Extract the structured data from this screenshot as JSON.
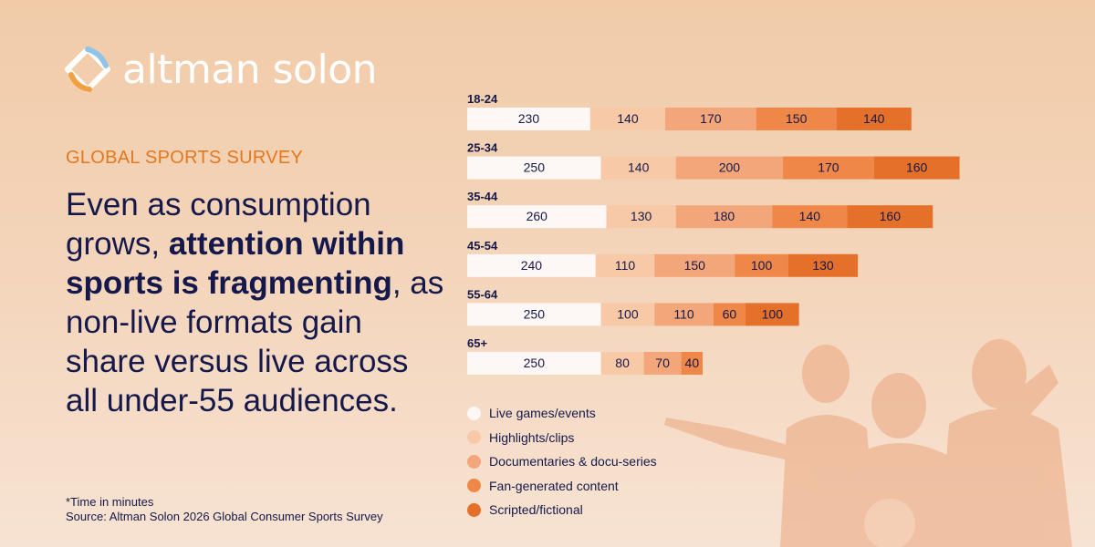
{
  "brand": {
    "name": "altman solon"
  },
  "eyebrow": "GLOBAL SPORTS SURVEY",
  "headline": {
    "part1": "Even as consumption grows, ",
    "bold": "attention within sports is fragmenting",
    "part2": ", as non-live formats gain share versus live across all under-55 audiences."
  },
  "footnote": {
    "unit_note": "*Time in minutes",
    "source": "Source: Altman Solon 2026 Global Consumer Sports Survey"
  },
  "chart_data": {
    "type": "bar",
    "orientation": "horizontal",
    "stacked": true,
    "categories": [
      "18-24",
      "25-34",
      "35-44",
      "45-54",
      "55-64",
      "65+"
    ],
    "series": [
      {
        "name": "Live games/events",
        "color": "#fdf8f5",
        "values": [
          230,
          250,
          260,
          240,
          250,
          250
        ]
      },
      {
        "name": "Highlights/clips",
        "color": "#f8c9a6",
        "values": [
          140,
          140,
          130,
          110,
          100,
          80
        ]
      },
      {
        "name": "Documentaries & docu-series",
        "color": "#f3a67a",
        "values": [
          170,
          200,
          180,
          150,
          110,
          70
        ]
      },
      {
        "name": "Fan-generated content",
        "color": "#ee8747",
        "values": [
          150,
          170,
          140,
          100,
          60,
          40
        ]
      },
      {
        "name": "Scripted/fictional",
        "color": "#e4702a",
        "values": [
          140,
          160,
          160,
          130,
          100,
          0
        ]
      }
    ],
    "data_labels": true,
    "legend_position": "bottom-left",
    "grid": false
  }
}
